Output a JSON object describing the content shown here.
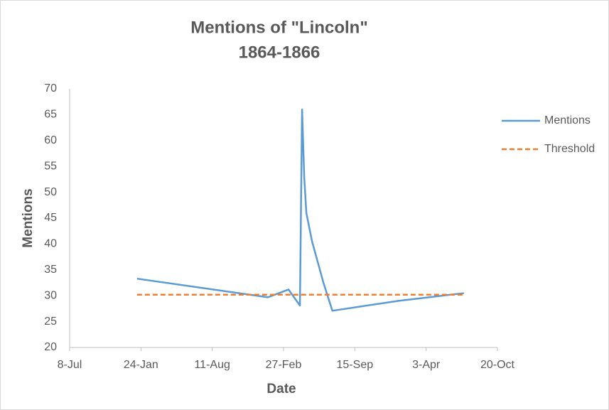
{
  "chart_data": {
    "type": "line",
    "title": "Mentions of \"Lincoln\"",
    "subtitle": "1864-1866",
    "x_label": "Date",
    "y_label": "Mentions",
    "x": [
      189,
      556,
      614,
      646,
      652,
      658,
      664,
      680,
      712,
      737,
      921,
      1106
    ],
    "series": [
      {
        "name": "Mentions",
        "color": "#5B9BD5",
        "dash": false,
        "values": [
          33.3,
          29.7,
          31.2,
          28.1,
          66,
          53,
          46,
          40.5,
          32.5,
          27.1,
          29,
          30.5
        ]
      },
      {
        "name": "Threshold",
        "color": "#ED7D31",
        "dash": true,
        "values": [
          30.2,
          30.2,
          30.2,
          30.2,
          30.2,
          30.2,
          30.2,
          30.2,
          30.2,
          30.2,
          30.2,
          30.2
        ]
      }
    ],
    "xlim": [
      0,
      1200
    ],
    "xticks": [
      {
        "value": 0,
        "label": "8-Jul"
      },
      {
        "value": 200,
        "label": "24-Jan"
      },
      {
        "value": 400,
        "label": "11-Aug"
      },
      {
        "value": 600,
        "label": "27-Feb"
      },
      {
        "value": 800,
        "label": "15-Sep"
      },
      {
        "value": 1000,
        "label": "3-Apr"
      },
      {
        "value": 1200,
        "label": "20-Oct"
      }
    ],
    "ylim": [
      20,
      70
    ],
    "yticks": [
      20,
      25,
      30,
      35,
      40,
      45,
      50,
      55,
      60,
      65,
      70
    ],
    "grid": false,
    "legend": "right"
  }
}
